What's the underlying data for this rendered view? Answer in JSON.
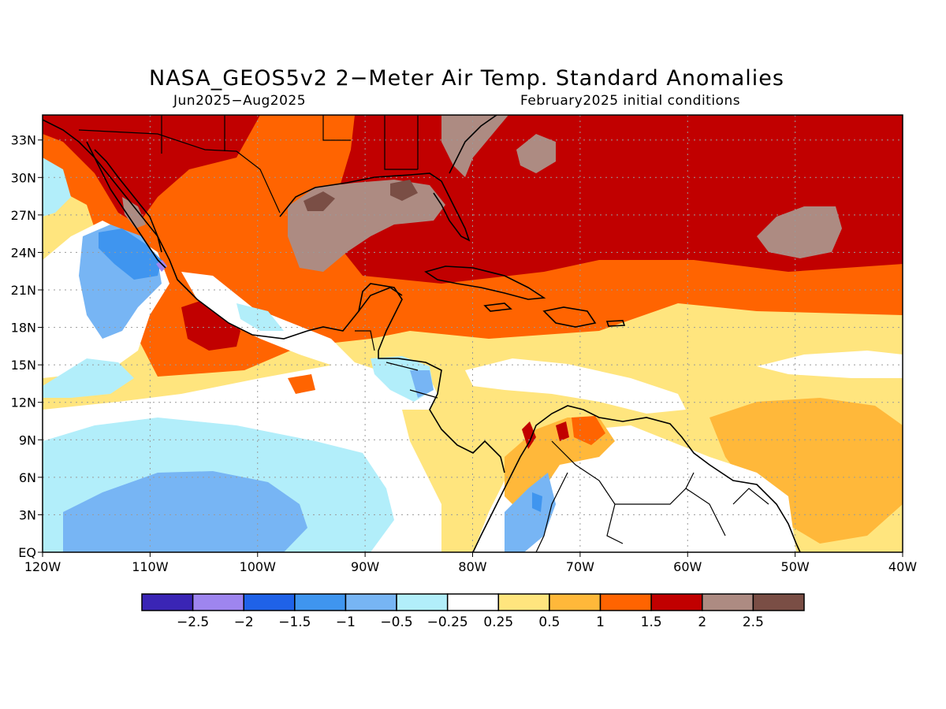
{
  "title": "NASA_GEOS5v2 2−Meter Air Temp. Standard Anomalies",
  "subtitle_left": "Jun2025−Aug2025",
  "subtitle_right": "February2025 initial conditions",
  "map_extent": {
    "lon": [
      -120,
      -40
    ],
    "lat": [
      0,
      35
    ]
  },
  "lat_ticks": [
    {
      "value": 33,
      "label": "33N"
    },
    {
      "value": 30,
      "label": "30N"
    },
    {
      "value": 27,
      "label": "27N"
    },
    {
      "value": 24,
      "label": "24N"
    },
    {
      "value": 21,
      "label": "21N"
    },
    {
      "value": 18,
      "label": "18N"
    },
    {
      "value": 15,
      "label": "15N"
    },
    {
      "value": 12,
      "label": "12N"
    },
    {
      "value": 9,
      "label": "9N"
    },
    {
      "value": 6,
      "label": "6N"
    },
    {
      "value": 3,
      "label": "3N"
    },
    {
      "value": 0,
      "label": "EQ"
    }
  ],
  "lon_ticks": [
    {
      "value": -120,
      "label": "120W"
    },
    {
      "value": -110,
      "label": "110W"
    },
    {
      "value": -100,
      "label": "100W"
    },
    {
      "value": -90,
      "label": "90W"
    },
    {
      "value": -80,
      "label": "80W"
    },
    {
      "value": -70,
      "label": "70W"
    },
    {
      "value": -60,
      "label": "60W"
    },
    {
      "value": -50,
      "label": "50W"
    },
    {
      "value": -40,
      "label": "40W"
    }
  ],
  "legend": {
    "colors": [
      "#3a25b5",
      "#9e85ef",
      "#1f62e8",
      "#3f95ef",
      "#77b5f4",
      "#b2eefa",
      "#ffffff",
      "#ffe57e",
      "#ffb83a",
      "#ff6401",
      "#c10000",
      "#ad8b82",
      "#7a4e45"
    ],
    "labels": [
      "−2.5",
      "−2",
      "−1.5",
      "−1",
      "−0.5",
      "−0.25",
      "0.25",
      "0.5",
      "1",
      "1.5",
      "2",
      "2.5"
    ]
  },
  "colors": {
    "ocean_neutral": "#ffffff",
    "light_cyan": "#b2eefa",
    "light_blue": "#77b5f4",
    "mid_blue": "#3f95ef",
    "purple": "#9e85ef",
    "light_yellow": "#ffe57e",
    "orange_light": "#ffb83a",
    "orange": "#ff6401",
    "red": "#c10000",
    "taupe": "#ad8b82",
    "brown": "#7a4e45"
  }
}
